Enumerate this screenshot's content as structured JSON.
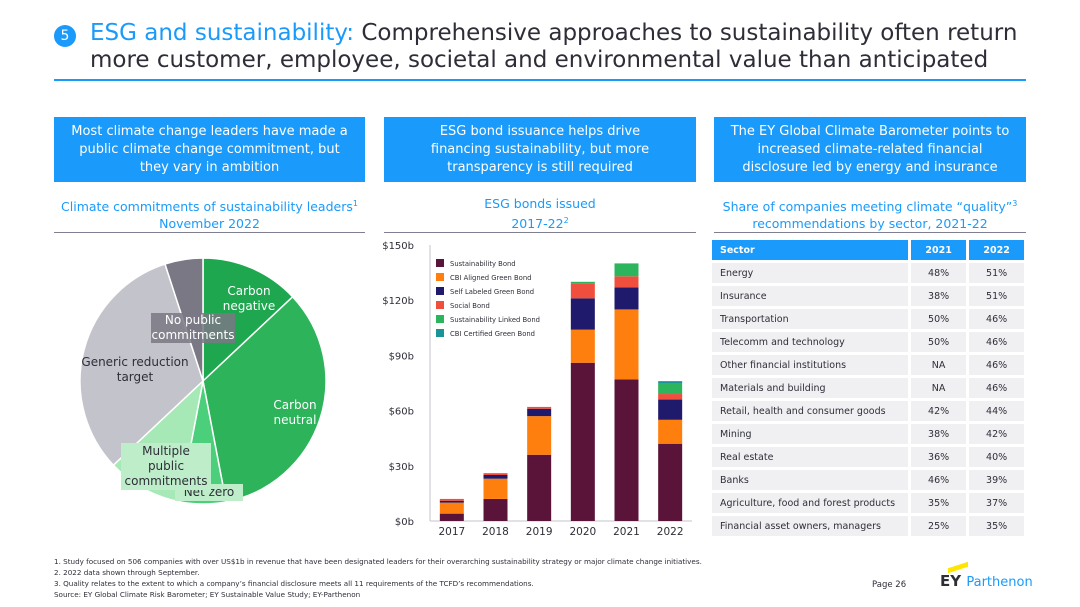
{
  "header": {
    "number": "5",
    "title_highlight": "ESG and sustainability:",
    "title_rest": " Comprehensive approaches to sustainability often return more customer, employee, societal and environmental value than anticipated"
  },
  "columns": {
    "left": {
      "box": "Most climate change leaders have made a public climate change commitment, but they vary in ambition",
      "subtitle": "Climate commitments of sustainability leaders",
      "subtitle_sup": "1",
      "subtitle_date": "November 2022"
    },
    "middle": {
      "box": "ESG bond issuance helps drive financing sustainability, but more transparency is still required",
      "subtitle": "ESG bonds issued",
      "subtitle_date": "2017-22",
      "subtitle_sup": "2"
    },
    "right": {
      "box": "The EY Global Climate Barometer points to increased climate-related financial disclosure led by energy and insurance",
      "subtitle": "Share of companies meeting climate “quality”",
      "subtitle_sup": "3",
      "subtitle_line2": "recommendations by sector, ",
      "subtitle_date": "2021-22"
    }
  },
  "colors": {
    "accent": "#1a9afa",
    "pie": [
      "#1ea74f",
      "#2db35a",
      "#4ccf7a",
      "#a6e9b6",
      "#c3c3cb",
      "#7a7884"
    ],
    "bonds": [
      "#5a1339",
      "#ff7f0e",
      "#1f1a6b",
      "#ef4f3c",
      "#2db55e",
      "#1a9396"
    ]
  },
  "chart_data": [
    {
      "type": "pie",
      "slices": [
        {
          "label": "Carbon negative",
          "value": 13
        },
        {
          "label": "Carbon neutral",
          "value": 34
        },
        {
          "label": "Net zero",
          "value": 6
        },
        {
          "label": "Multiple public commitments",
          "value": 10
        },
        {
          "label": "Generic reduction target",
          "value": 32
        },
        {
          "label": "No public commitments",
          "value": 5
        }
      ]
    },
    {
      "type": "bar",
      "stacked": true,
      "categories": [
        "2017",
        "2018",
        "2019",
        "2020",
        "2021",
        "2022"
      ],
      "yticks": [
        "$0b",
        "$30b",
        "$60b",
        "$90b",
        "$120b",
        "$150b"
      ],
      "ylim": [
        0,
        150
      ],
      "legend_position": "top-left",
      "series": [
        {
          "name": "Sustainability Bond",
          "values": [
            4,
            12,
            36,
            86,
            77,
            42
          ]
        },
        {
          "name": "CBI Aligned Green Bond",
          "values": [
            6,
            11,
            21,
            18,
            38,
            13
          ]
        },
        {
          "name": "Self Labeled Green Bond",
          "values": [
            1,
            2,
            4,
            17,
            12,
            11
          ]
        },
        {
          "name": "Social Bond",
          "values": [
            1,
            1,
            1,
            8,
            6,
            3
          ]
        },
        {
          "name": "Sustainability Linked Bond",
          "values": [
            0,
            0,
            0,
            1,
            7,
            6
          ]
        },
        {
          "name": "CBI Certified Green Bond",
          "values": [
            0,
            0,
            0,
            0,
            0,
            1
          ]
        }
      ]
    },
    {
      "type": "table",
      "columns": [
        "Sector",
        "2021",
        "2022"
      ],
      "rows": [
        [
          "Energy",
          "48%",
          "51%"
        ],
        [
          "Insurance",
          "38%",
          "51%"
        ],
        [
          "Transportation",
          "50%",
          "46%"
        ],
        [
          "Telecomm and technology",
          "50%",
          "46%"
        ],
        [
          "Other financial institutions",
          "NA",
          "46%"
        ],
        [
          "Materials and building",
          "NA",
          "46%"
        ],
        [
          "Retail, health and consumer goods",
          "42%",
          "44%"
        ],
        [
          "Mining",
          "38%",
          "42%"
        ],
        [
          "Real estate",
          "36%",
          "40%"
        ],
        [
          "Banks",
          "46%",
          "39%"
        ],
        [
          "Agriculture, food and forest products",
          "35%",
          "37%"
        ],
        [
          "Financial asset owners, managers",
          "25%",
          "35%"
        ]
      ]
    }
  ],
  "pie_labels": {
    "carbon_negative": "Carbon negative",
    "carbon_neutral": "Carbon neutral",
    "net_zero": "Net zero",
    "multiple": "Multiple public commitments",
    "generic": "Generic reduction target",
    "no_public": "No public commitments"
  },
  "footnotes": [
    "1. Study focused on 506 companies with over US$1b in revenue that have been designated leaders for their overarching sustainability strategy or major climate change initiatives.",
    "2. 2022 data shown through September.",
    "3. Quality relates to the extent to which a company’s financial disclosure meets all 11 requirements of the TCFD’s recommendations.",
    "Source: EY Global Climate Risk Barometer; EY Sustainable Value Study; EY-Parthenon"
  ],
  "footer": {
    "page": "Page 26",
    "brand": "EY",
    "brand_suffix": "Parthenon"
  }
}
